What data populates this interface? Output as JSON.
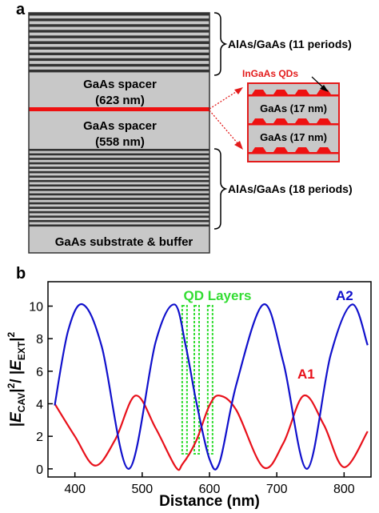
{
  "panel_a": {
    "label": "a",
    "top_mirror_label": "AlAs/GaAs (11 periods)",
    "bottom_mirror_label": "AlAs/GaAs (18 periods)",
    "spacer_top_name": "GaAs spacer",
    "spacer_top_thickness": "(623 nm)",
    "spacer_bottom_name": "GaAs spacer",
    "spacer_bottom_thickness": "(558 nm)",
    "substrate_label": "GaAs substrate & buffer",
    "qd_label": "InGaAs QDs",
    "inset_layer1": "GaAs (17 nm)",
    "inset_layer2": "GaAs (17 nm)",
    "top_mirror_periods": 11,
    "bottom_mirror_periods": 18,
    "colors": {
      "dark_layer": "#333333",
      "light_layer": "#c8c8c8",
      "qd_red": "#ee1111",
      "inset_fill": "#c8c8c8"
    }
  },
  "panel_b": {
    "label": "b",
    "ylabel_parts": {
      "e_cav": "E",
      "cav_sub": "CAV",
      "sq1": "2",
      "e_ext": "E",
      "ext_sub": "EXT",
      "sq2": "2"
    },
    "xlabel": "Distance (nm)",
    "qd_layers_label": "QD Layers",
    "series_labels": {
      "A1": "A1",
      "A2": "A2"
    },
    "x_ticks": [
      "400",
      "500",
      "600",
      "700",
      "800"
    ],
    "y_ticks": [
      "0",
      "2",
      "4",
      "6",
      "8",
      "10"
    ],
    "colors": {
      "A1": "#e8101a",
      "A2": "#1010cc",
      "qd": "#33dd33"
    }
  },
  "chart_data": {
    "type": "line",
    "xlabel": "Distance (nm)",
    "ylabel": "|E_CAV|^2 / |E_EXT|^2",
    "xlim": [
      360,
      840
    ],
    "ylim": [
      -0.5,
      11.5
    ],
    "qd_layer_positions": [
      563,
      581,
      601
    ],
    "series": [
      {
        "name": "A1",
        "x": [
          370,
          400,
          430,
          460,
          490,
          520,
          550,
          560,
          580,
          600,
          615,
          640,
          680,
          710,
          740,
          770,
          800,
          835
        ],
        "y": [
          4.0,
          2.0,
          0.2,
          1.8,
          4.5,
          2.5,
          0.1,
          0.3,
          1.7,
          3.9,
          4.5,
          3.6,
          0.1,
          1.6,
          4.5,
          2.7,
          0.1,
          2.3
        ]
      },
      {
        "name": "A2",
        "x": [
          370,
          390,
          412,
          440,
          480,
          520,
          548,
          565,
          580,
          600,
          615,
          640,
          680,
          710,
          745,
          780,
          812,
          835
        ],
        "y": [
          3.9,
          8.5,
          10.1,
          7.5,
          0.0,
          7.8,
          10.1,
          7.5,
          4.2,
          0.6,
          0.4,
          5.2,
          10.1,
          6.5,
          0.0,
          7.0,
          10.1,
          7.6
        ]
      }
    ]
  }
}
